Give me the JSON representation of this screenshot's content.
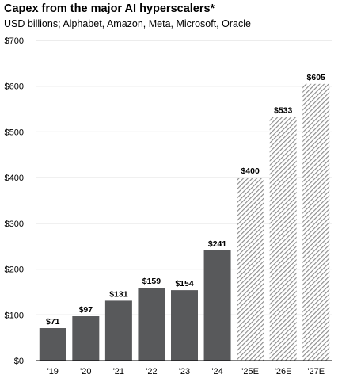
{
  "chart_data": {
    "type": "bar",
    "title": "Capex from the major AI hyperscalers*",
    "subtitle": "USD billions; Alphabet, Amazon, Meta, Microsoft, Oracle",
    "xlabel": "",
    "ylabel": "",
    "categories": [
      "'19",
      "'20",
      "'21",
      "'22",
      "'23",
      "'24",
      "'25E",
      "'26E",
      "'27E"
    ],
    "values": [
      71,
      97,
      131,
      159,
      154,
      241,
      400,
      533,
      605
    ],
    "value_labels": [
      "$71",
      "$97",
      "$131",
      "$159",
      "$154",
      "$241",
      "$400",
      "$533",
      "$605"
    ],
    "estimate": [
      false,
      false,
      false,
      false,
      false,
      false,
      true,
      true,
      true
    ],
    "ylim": [
      0,
      700
    ],
    "yticks": [
      0,
      100,
      200,
      300,
      400,
      500,
      600,
      700
    ],
    "ytick_labels": [
      "$0",
      "$100",
      "$200",
      "$300",
      "$400",
      "$500",
      "$600",
      "$700"
    ],
    "grid": "horizontal",
    "legend": "none",
    "colors": {
      "actual": "#58595b",
      "estimate_hatch": "#8a8a8a",
      "grid": "#d9d9d9",
      "axis": "#000000"
    }
  }
}
